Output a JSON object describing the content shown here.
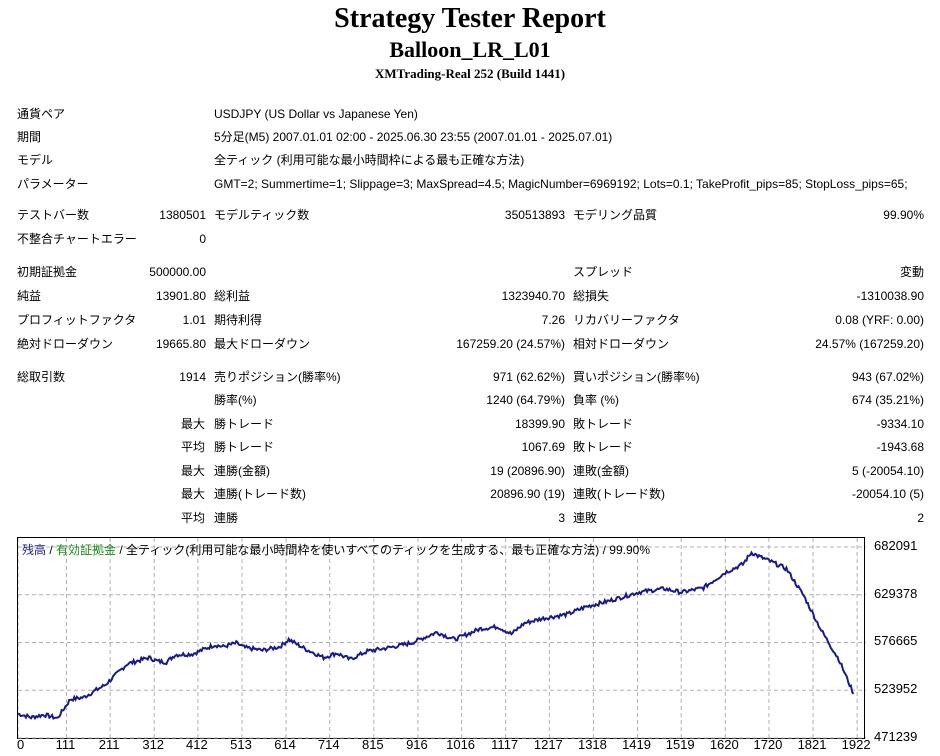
{
  "report": {
    "title": "Strategy Tester Report",
    "ea_name": "Balloon_LR_L01",
    "server": "XMTrading-Real 252 (Build 1441)"
  },
  "info": {
    "pair_label": "通貨ペア",
    "pair_value": "USDJPY (US Dollar vs Japanese Yen)",
    "period_label": "期間",
    "period_value": "5分足(M5) 2007.01.01 02:00 - 2025.06.30 23:55 (2007.01.01 - 2025.07.01)",
    "model_label": "モデル",
    "model_value": "全ティック (利用可能な最小時間枠による最も正確な方法)",
    "params_label": "パラメーター",
    "params_value": "GMT=2; Summertime=1; Slippage=3; MaxSpread=4.5; MagicNumber=6969192; Lots=0.1; TakeProfit_pips=85; StopLoss_pips=65;"
  },
  "stats": {
    "bars_label": "テストバー数",
    "bars_value": "1380501",
    "ticks_label": "モデルティック数",
    "ticks_value": "350513893",
    "quality_label": "モデリング品質",
    "quality_value": "99.90%",
    "mismatch_label": "不整合チャートエラー",
    "mismatch_value": "0",
    "deposit_label": "初期証拠金",
    "deposit_value": "500000.00",
    "spread_label": "スプレッド",
    "spread_value": "変動",
    "net_label": "純益",
    "net_value": "13901.80",
    "gross_profit_label": "総利益",
    "gross_profit_value": "1323940.70",
    "gross_loss_label": "総損失",
    "gross_loss_value": "-1310038.90",
    "pf_label": "プロフィットファクタ",
    "pf_value": "1.01",
    "expected_label": "期待利得",
    "expected_value": "7.26",
    "recovery_label": "リカバリーファクタ",
    "recovery_value": "0.08 (YRF: 0.00)",
    "abs_dd_label": "絶対ドローダウン",
    "abs_dd_value": "19665.80",
    "max_dd_label": "最大ドローダウン",
    "max_dd_value": "167259.20 (24.57%)",
    "rel_dd_label": "相対ドローダウン",
    "rel_dd_value": "24.57% (167259.20)",
    "total_trades_label": "総取引数",
    "total_trades_value": "1914",
    "short_label": "売りポジション(勝率%)",
    "short_value": "971 (62.62%)",
    "long_label": "買いポジション(勝率%)",
    "long_value": "943 (67.02%)",
    "win_rate_label": "勝率(%)",
    "win_rate_value": "1240 (64.79%)",
    "loss_rate_label": "負率 (%)",
    "loss_rate_value": "674 (35.21%)",
    "max_prefix": "最大",
    "avg_prefix": "平均",
    "largest_win_label": "勝トレード",
    "largest_win_value": "18399.90",
    "largest_loss_label": "敗トレード",
    "largest_loss_value": "-9334.10",
    "avg_win_label": "勝トレード",
    "avg_win_value": "1067.69",
    "avg_loss_label": "敗トレード",
    "avg_loss_value": "-1943.68",
    "cons_wins_amt_label": "連勝(金額)",
    "cons_wins_amt_value": "19 (20896.90)",
    "cons_losses_amt_label": "連敗(金額)",
    "cons_losses_amt_value": "5 (-20054.10)",
    "cons_wins_cnt_label": "連勝(トレード数)",
    "cons_wins_cnt_value": "20896.90 (19)",
    "cons_losses_cnt_label": "連敗(トレード数)",
    "cons_losses_cnt_value": "-20054.10 (5)",
    "avg_cons_wins_label": "連勝",
    "avg_cons_wins_value": "3",
    "avg_cons_losses_label": "連敗",
    "avg_cons_losses_value": "2"
  },
  "legend": {
    "balance": "残高",
    "sep1": " / ",
    "equity": "有効証拠金",
    "rest": " / 全ティック(利用可能な最小時間枠を使いすべてのティックを生成する、最も正確な方法) / 99.90%"
  },
  "colors": {
    "balance": "#1a1a8c",
    "equity": "#1a8c1a",
    "grid": "#b0b0b0"
  },
  "chart_data": {
    "type": "line",
    "series": [
      {
        "name": "残高",
        "x": [
          0,
          30,
          60,
          90,
          100,
          120,
          150,
          200,
          250,
          300,
          320,
          340,
          360,
          400,
          450,
          470,
          500,
          520,
          560,
          600,
          620,
          660,
          700,
          730,
          760,
          800,
          850,
          900,
          960,
          1000,
          1060,
          1100,
          1130,
          1160,
          1200,
          1260,
          1300,
          1350,
          1420,
          1480,
          1520,
          1570,
          1620,
          1660,
          1680,
          1700,
          1720,
          1760,
          1800,
          1840,
          1880,
          1914
        ],
        "y": [
          498000,
          494000,
          497000,
          493000,
          500000,
          514000,
          516000,
          530000,
          553000,
          560000,
          556000,
          555000,
          563000,
          564000,
          574000,
          572000,
          576000,
          571000,
          568000,
          572000,
          580000,
          569000,
          560000,
          565000,
          558000,
          567000,
          571000,
          576000,
          588000,
          580000,
          592000,
          594000,
          586000,
          598000,
          603000,
          608000,
          616000,
          622000,
          632000,
          636000,
          632000,
          637000,
          654000,
          663000,
          676000,
          671000,
          667000,
          658000,
          628000,
          590000,
          558000,
          520000
        ]
      }
    ],
    "x_ticks": [
      0,
      111,
      211,
      312,
      412,
      513,
      614,
      714,
      815,
      916,
      1016,
      1117,
      1217,
      1318,
      1419,
      1519,
      1620,
      1720,
      1821,
      1922
    ],
    "y_ticks": [
      471239,
      523952,
      576665,
      629378,
      682091
    ],
    "xlim": [
      0,
      1940
    ],
    "ylim": [
      471239,
      692000
    ],
    "grid": true
  }
}
